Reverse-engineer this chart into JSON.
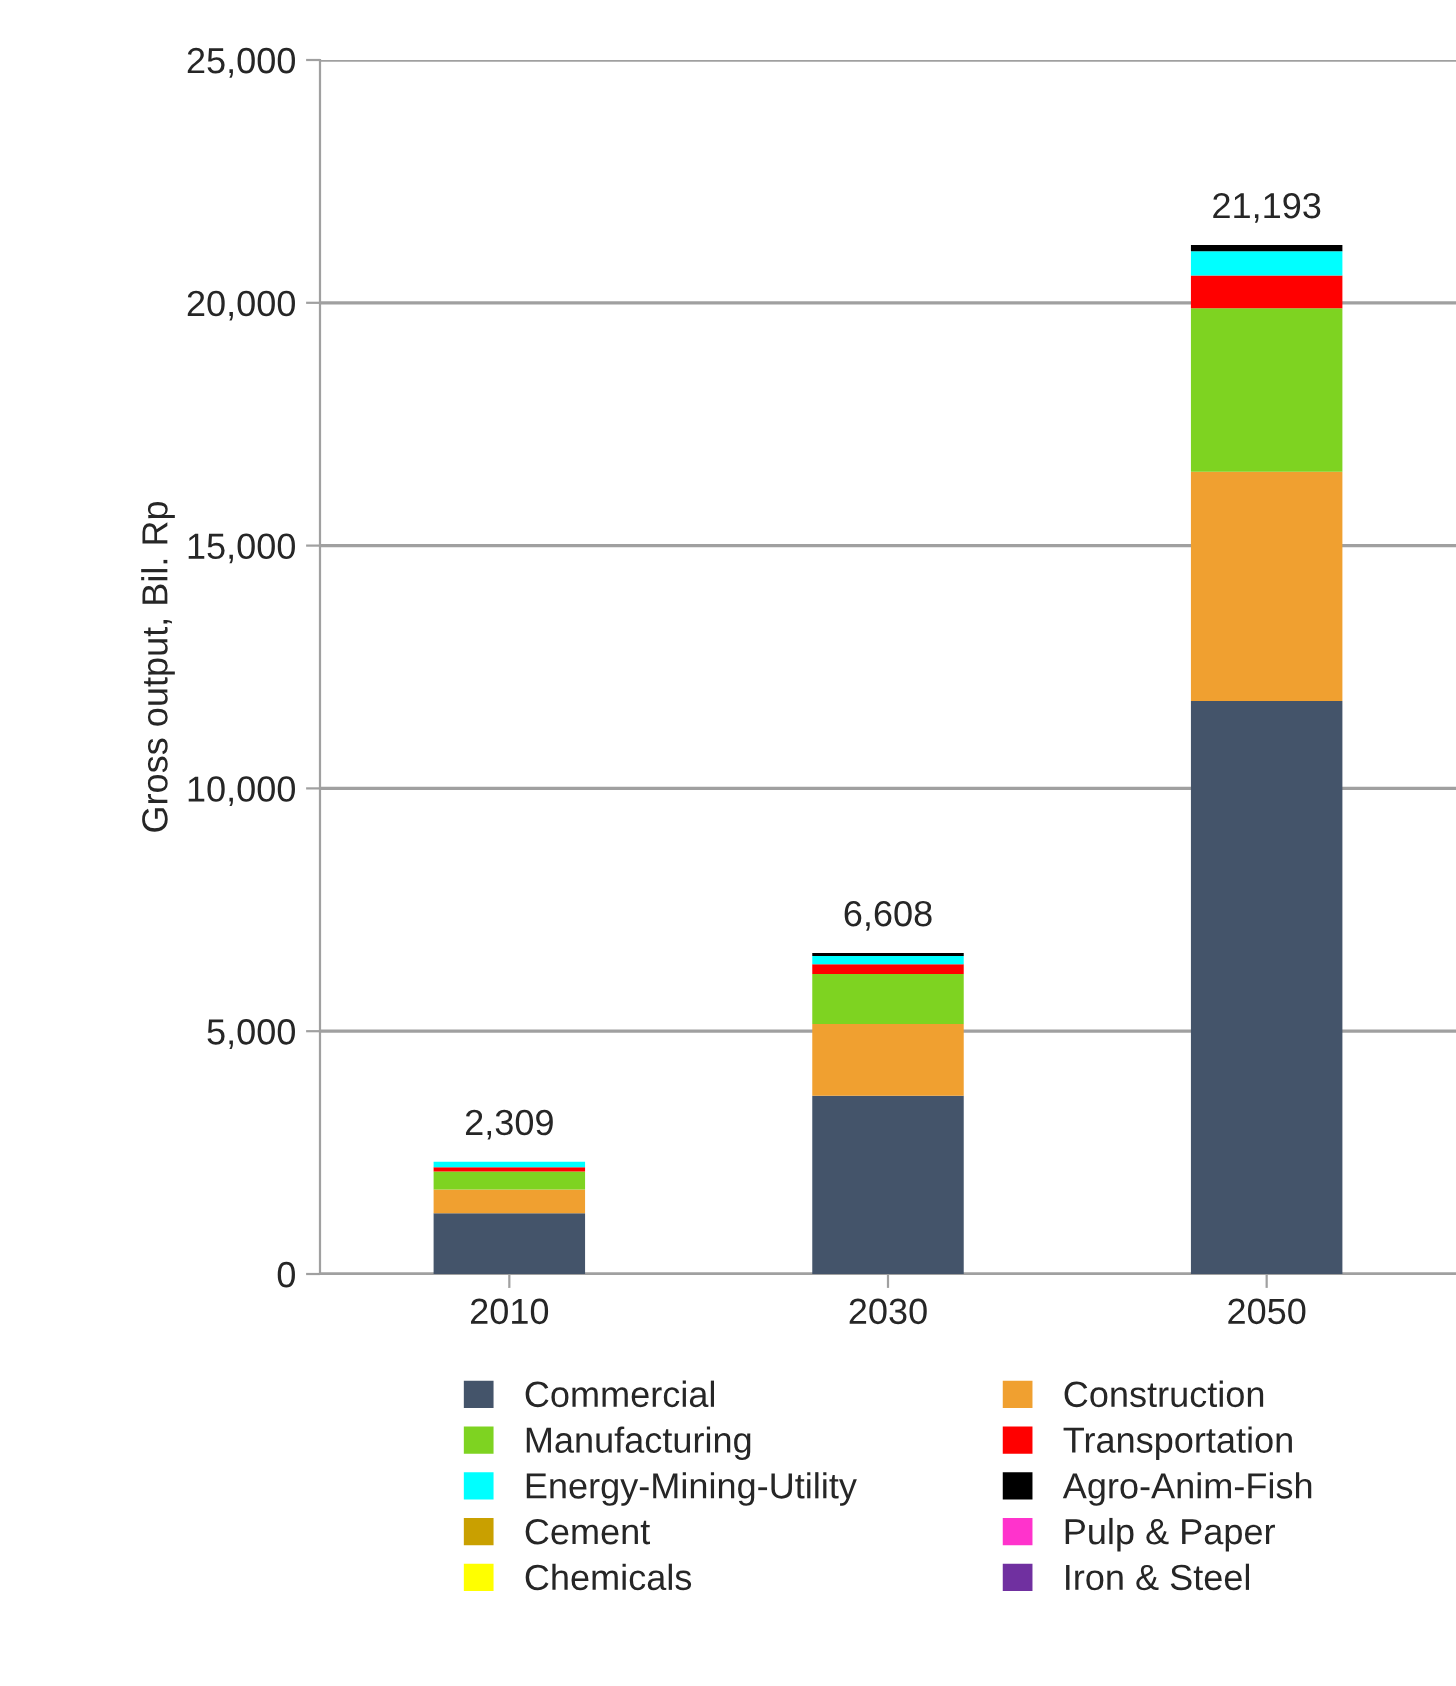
{
  "chart_data": {
    "type": "bar",
    "stacked": true,
    "ylabel": "Gross output, Bil. Rp",
    "categories": [
      "2010",
      "2030",
      "2050"
    ],
    "series": [
      {
        "name": "Commercial",
        "color": "#44546a",
        "values": [
          1250,
          3670,
          11800
        ]
      },
      {
        "name": "Construction",
        "color": "#f0a030",
        "values": [
          490,
          1480,
          4720
        ]
      },
      {
        "name": "Manufacturing",
        "color": "#7ed321",
        "values": [
          370,
          1030,
          3370
        ]
      },
      {
        "name": "Transportation",
        "color": "#ff0000",
        "values": [
          90,
          200,
          670
        ]
      },
      {
        "name": "Energy-Mining-Utility",
        "color": "#00ffff",
        "values": [
          109,
          170,
          500
        ]
      },
      {
        "name": "Agro-Anim-Fish",
        "color": "#000000",
        "values": [
          null,
          60,
          130
        ]
      },
      {
        "name": "Cement",
        "color": "#c9a000",
        "values": [
          0,
          0,
          0
        ]
      },
      {
        "name": "Pulp & Paper",
        "color": "#ff33cc",
        "values": [
          0,
          0,
          0
        ]
      },
      {
        "name": "Chemicals",
        "color": "#ffff00",
        "values": [
          0,
          0,
          0
        ]
      },
      {
        "name": "Iron & Steel",
        "color": "#7030a0",
        "values": [
          0,
          0,
          0
        ]
      }
    ],
    "totals": [
      "2,309",
      "6,608",
      "21,193"
    ],
    "ylim": [
      0,
      25000
    ],
    "yticks": [
      {
        "value": 0,
        "label": "0"
      },
      {
        "value": 5000,
        "label": "5,000"
      },
      {
        "value": 10000,
        "label": "10,000"
      },
      {
        "value": 15000,
        "label": "15,000"
      },
      {
        "value": 20000,
        "label": "20,000"
      },
      {
        "value": 25000,
        "label": "25,000"
      }
    ],
    "grid": "y",
    "legend": "bottom"
  }
}
